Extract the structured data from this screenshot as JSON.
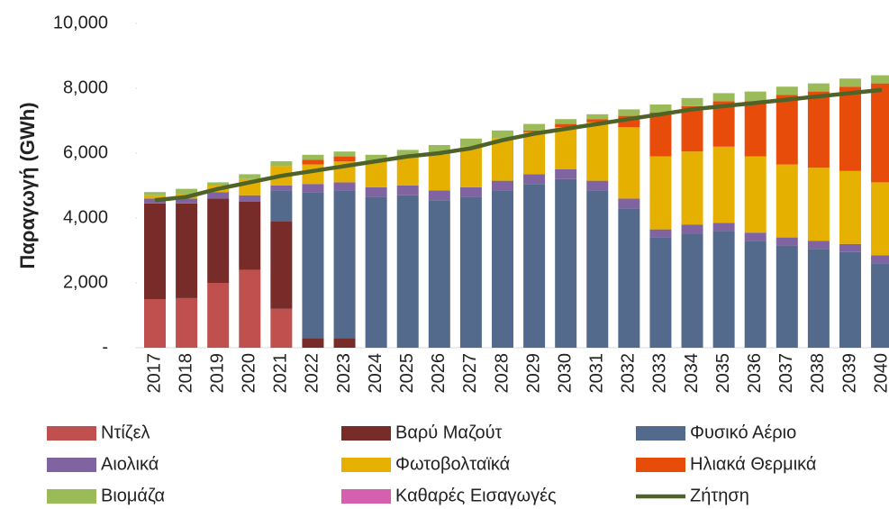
{
  "chart_data": {
    "type": "bar",
    "stacked": true,
    "grid": false,
    "ylabel": "Παραγωγή (GWh)",
    "categories": [
      "2017",
      "2018",
      "2019",
      "2020",
      "2021",
      "2022",
      "2023",
      "2024",
      "2025",
      "2026",
      "2027",
      "2028",
      "2029",
      "2030",
      "2031",
      "2032",
      "2033",
      "2034",
      "2035",
      "2036",
      "2037",
      "2038",
      "2039",
      "2040"
    ],
    "ylim": [
      0,
      10000
    ],
    "yticks": [
      {
        "value": 0,
        "label": "-"
      },
      {
        "value": 2000,
        "label": "2,000"
      },
      {
        "value": 4000,
        "label": "4,000"
      },
      {
        "value": 6000,
        "label": "6,000"
      },
      {
        "value": 8000,
        "label": "8,000"
      },
      {
        "value": 10000,
        "label": "10,000"
      }
    ],
    "series": [
      {
        "name": "Ντίζελ",
        "color": "#c0504d",
        "values": [
          1500,
          1530,
          2000,
          2400,
          1200,
          0,
          0,
          0,
          0,
          0,
          0,
          0,
          0,
          0,
          0,
          0,
          0,
          0,
          0,
          0,
          0,
          0,
          0,
          0
        ]
      },
      {
        "name": "Βαρύ Μαζούτ",
        "color": "#772c2a",
        "values": [
          2950,
          2920,
          2600,
          2100,
          2700,
          300,
          300,
          0,
          0,
          0,
          0,
          0,
          0,
          0,
          0,
          0,
          0,
          0,
          0,
          0,
          0,
          0,
          0,
          0
        ]
      },
      {
        "name": "Φυσικό Αέριο",
        "color": "#536a8c",
        "values": [
          0,
          0,
          0,
          0,
          950,
          4500,
          4550,
          4650,
          4700,
          4550,
          4650,
          4850,
          5050,
          5200,
          4850,
          4300,
          3400,
          3500,
          3600,
          3300,
          3150,
          3050,
          2950,
          2600
        ]
      },
      {
        "name": "Αιολικά",
        "color": "#8064a2",
        "values": [
          150,
          150,
          200,
          200,
          150,
          250,
          250,
          300,
          300,
          300,
          300,
          300,
          300,
          300,
          300,
          300,
          250,
          300,
          250,
          250,
          250,
          250,
          250,
          250
        ]
      },
      {
        "name": "Φωτοβολταϊκά",
        "color": "#e6b000",
        "values": [
          100,
          150,
          200,
          500,
          600,
          600,
          650,
          800,
          900,
          1100,
          1250,
          1300,
          1300,
          1300,
          1800,
          2200,
          2250,
          2250,
          2350,
          2350,
          2250,
          2250,
          2250,
          2250
        ]
      },
      {
        "name": "Ηλιακά Θερμικά",
        "color": "#e84c0a",
        "values": [
          0,
          0,
          0,
          0,
          0,
          150,
          150,
          0,
          0,
          0,
          0,
          0,
          50,
          100,
          100,
          350,
          1350,
          1400,
          1400,
          1700,
          2150,
          2350,
          2600,
          3050
        ]
      },
      {
        "name": "Βιομάζα",
        "color": "#9bbb59",
        "values": [
          100,
          150,
          100,
          150,
          150,
          150,
          150,
          200,
          200,
          300,
          250,
          250,
          200,
          150,
          150,
          200,
          250,
          250,
          250,
          300,
          250,
          250,
          250,
          250
        ]
      },
      {
        "name": "Καθαρές Εισαγωγές",
        "color": "#d660b0",
        "values": [
          0,
          0,
          0,
          0,
          0,
          0,
          0,
          0,
          0,
          0,
          0,
          0,
          0,
          0,
          0,
          0,
          0,
          0,
          0,
          0,
          0,
          0,
          0,
          0
        ]
      },
      {
        "name": "Ζήτηση",
        "type": "line",
        "color": "#4f6228",
        "values": [
          4550,
          4650,
          4900,
          5100,
          5300,
          5450,
          5600,
          5750,
          5900,
          6000,
          6150,
          6400,
          6600,
          6750,
          6900,
          7050,
          7200,
          7350,
          7450,
          7550,
          7650,
          7750,
          7850,
          7950
        ]
      }
    ]
  }
}
